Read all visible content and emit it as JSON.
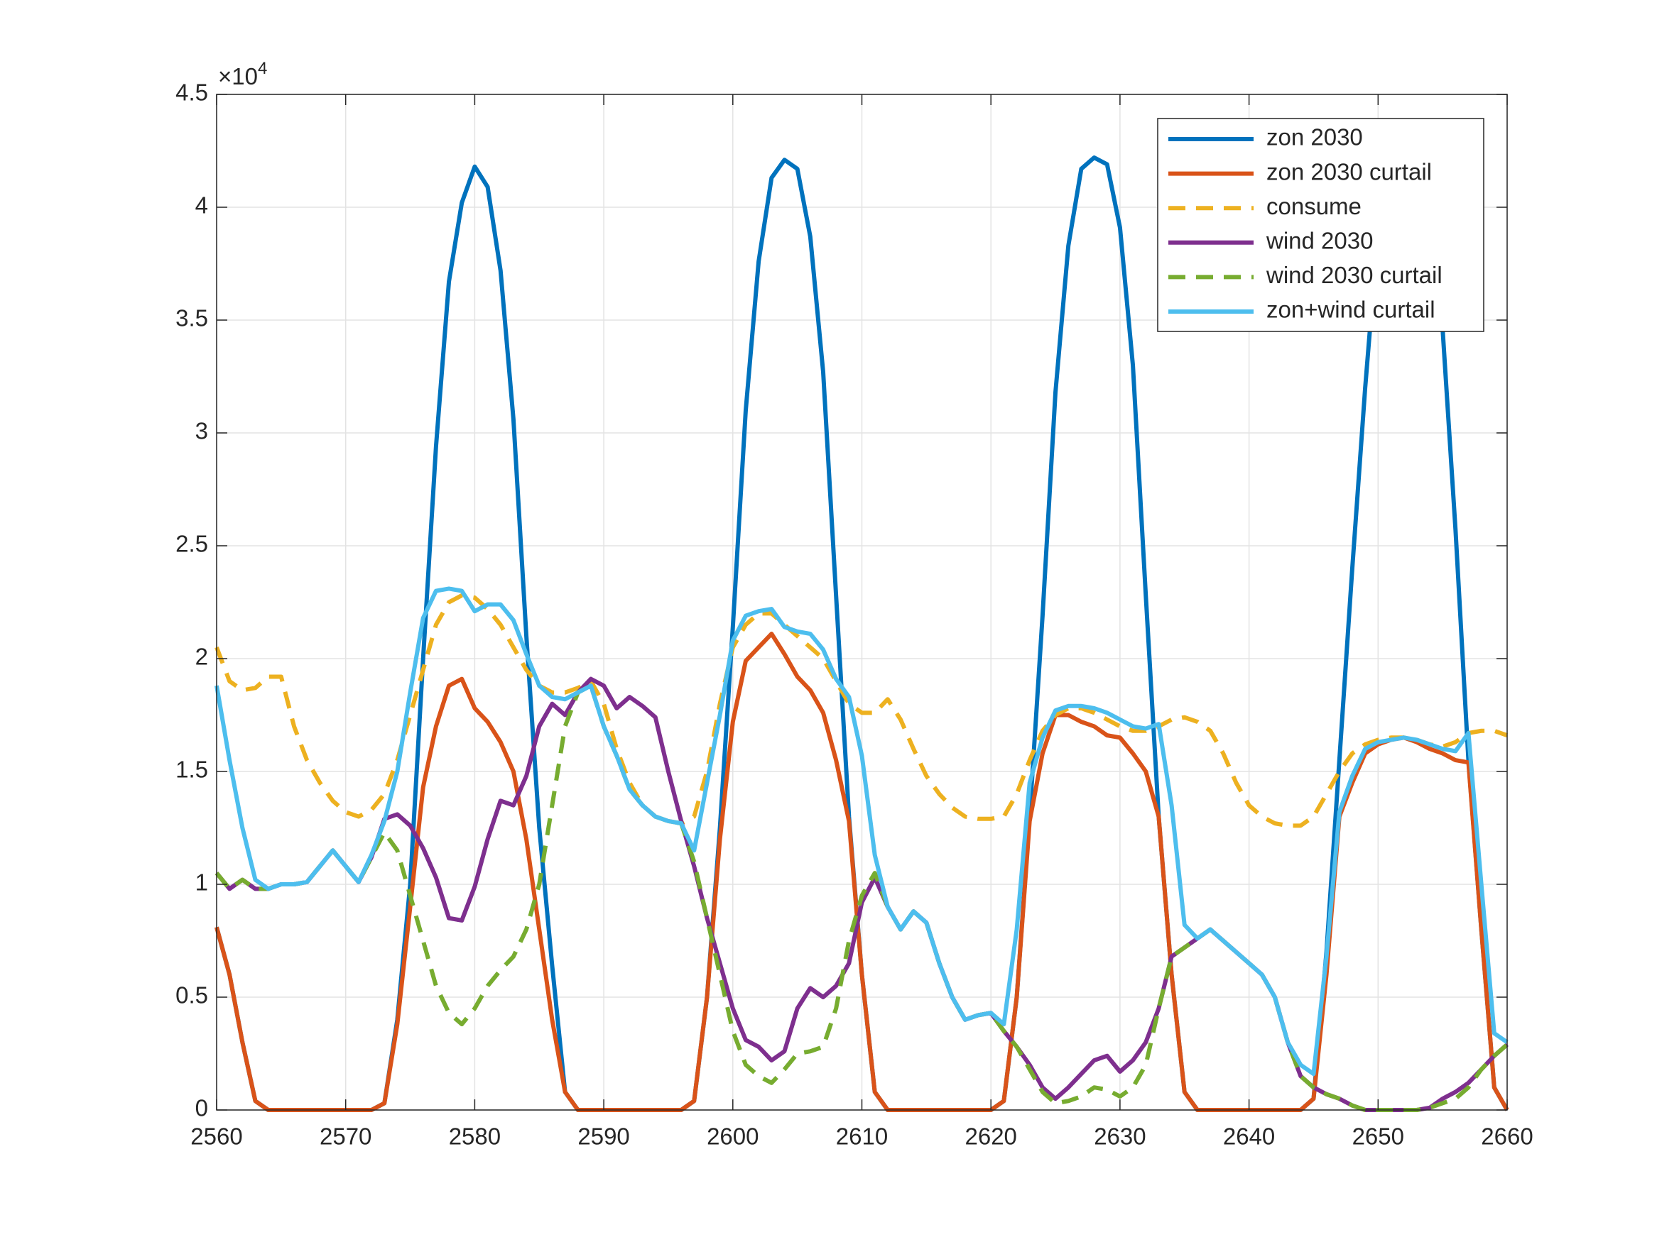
{
  "chart_data": {
    "type": "line",
    "y_exponent_base": "×10",
    "y_exponent": "4",
    "x": [
      2560,
      2561,
      2562,
      2563,
      2564,
      2565,
      2566,
      2567,
      2568,
      2569,
      2570,
      2571,
      2572,
      2573,
      2574,
      2575,
      2576,
      2577,
      2578,
      2579,
      2580,
      2581,
      2582,
      2583,
      2584,
      2585,
      2586,
      2587,
      2588,
      2589,
      2590,
      2591,
      2592,
      2593,
      2594,
      2595,
      2596,
      2597,
      2598,
      2599,
      2600,
      2601,
      2602,
      2603,
      2604,
      2605,
      2606,
      2607,
      2608,
      2609,
      2610,
      2611,
      2612,
      2613,
      2614,
      2615,
      2616,
      2617,
      2618,
      2619,
      2620,
      2621,
      2622,
      2623,
      2624,
      2625,
      2626,
      2627,
      2628,
      2629,
      2630,
      2631,
      2632,
      2633,
      2634,
      2635,
      2636,
      2637,
      2638,
      2639,
      2640,
      2641,
      2642,
      2643,
      2644,
      2645,
      2646,
      2647,
      2648,
      2649,
      2650,
      2651,
      2652,
      2653,
      2654,
      2655,
      2656,
      2657,
      2658,
      2659,
      2660
    ],
    "xlim": [
      2560,
      2660
    ],
    "xticks": [
      2560,
      2570,
      2580,
      2590,
      2600,
      2610,
      2620,
      2630,
      2640,
      2650,
      2660
    ],
    "ylim": [
      0,
      45000
    ],
    "yticks": [
      0,
      {
        "value": 5000,
        "label": "0.5"
      },
      {
        "value": 10000,
        "label": "1"
      },
      {
        "value": 15000,
        "label": "1.5"
      },
      {
        "value": 20000,
        "label": "2"
      },
      {
        "value": 25000,
        "label": "2.5"
      },
      {
        "value": 30000,
        "label": "3"
      },
      {
        "value": 35000,
        "label": "3.5"
      },
      {
        "value": 40000,
        "label": "4"
      },
      {
        "value": 45000,
        "label": "4.5"
      }
    ],
    "grid": true,
    "legend_position": "northeast",
    "series": [
      {
        "name": "zon 2030",
        "color": "#0072BD",
        "linestyle": "solid",
        "values": [
          8100,
          6000,
          3000,
          400,
          0,
          0,
          0,
          0,
          0,
          0,
          0,
          0,
          0,
          300,
          4000,
          10000,
          20000,
          29400,
          36700,
          40200,
          41800,
          40900,
          37200,
          30600,
          21000,
          12500,
          6400,
          800,
          0,
          0,
          0,
          0,
          0,
          0,
          0,
          0,
          0,
          400,
          5000,
          12500,
          21400,
          31000,
          37600,
          41300,
          42100,
          41700,
          38700,
          32700,
          22800,
          13000,
          6000,
          800,
          0,
          0,
          0,
          0,
          0,
          0,
          0,
          0,
          0,
          400,
          5000,
          13000,
          21900,
          31800,
          38300,
          41700,
          42200,
          41900,
          39100,
          33000,
          22800,
          13000,
          6000,
          800,
          0,
          0,
          0,
          0,
          0,
          0,
          0,
          0,
          0,
          500,
          7000,
          15500,
          24000,
          32000,
          39000,
          42000,
          42300,
          42000,
          40000,
          34600,
          25700,
          15500,
          8000,
          1000,
          0
        ]
      },
      {
        "name": "zon 2030 curtail",
        "color": "#D95319",
        "linestyle": "solid",
        "values": [
          8100,
          6000,
          3000,
          400,
          0,
          0,
          0,
          0,
          0,
          0,
          0,
          0,
          0,
          300,
          3800,
          9000,
          14300,
          17000,
          18800,
          19100,
          17800,
          17200,
          16300,
          15000,
          12000,
          8000,
          4000,
          800,
          0,
          0,
          0,
          0,
          0,
          0,
          0,
          0,
          0,
          400,
          5000,
          12000,
          17200,
          19900,
          20500,
          21100,
          20200,
          19200,
          18600,
          17600,
          15500,
          12800,
          6000,
          800,
          0,
          0,
          0,
          0,
          0,
          0,
          0,
          0,
          0,
          400,
          5000,
          12800,
          15800,
          17500,
          17500,
          17200,
          17000,
          16600,
          16500,
          15800,
          15000,
          13000,
          6000,
          800,
          0,
          0,
          0,
          0,
          0,
          0,
          0,
          0,
          0,
          500,
          6000,
          13000,
          14500,
          15800,
          16200,
          16400,
          16500,
          16300,
          16000,
          15800,
          15500,
          15400,
          8000,
          1000,
          0
        ]
      },
      {
        "name": "consume",
        "color": "#EDB120",
        "linestyle": "dashed",
        "values": [
          20500,
          19000,
          18600,
          18700,
          19200,
          19200,
          17000,
          15500,
          14500,
          13700,
          13200,
          13000,
          13300,
          14000,
          15500,
          17500,
          19500,
          21500,
          22500,
          22800,
          22700,
          22200,
          21500,
          20500,
          19500,
          18800,
          18500,
          18500,
          18700,
          19000,
          18000,
          16000,
          14500,
          13500,
          13000,
          12800,
          12700,
          13000,
          15000,
          18000,
          20500,
          21500,
          22000,
          22000,
          21500,
          21000,
          20500,
          20000,
          19000,
          18000,
          17600,
          17600,
          18200,
          17300,
          16000,
          14800,
          14000,
          13400,
          13000,
          12900,
          12900,
          13000,
          14000,
          15500,
          16800,
          17500,
          17800,
          17800,
          17600,
          17300,
          17000,
          16800,
          16800,
          17000,
          17300,
          17400,
          17200,
          16800,
          15800,
          14500,
          13500,
          13000,
          12700,
          12600,
          12600,
          13000,
          14000,
          15000,
          15800,
          16200,
          16400,
          16500,
          16500,
          16400,
          16200,
          16100,
          16300,
          16700,
          16800,
          16800,
          16600
        ]
      },
      {
        "name": "wind 2030",
        "color": "#7E2F8E",
        "linestyle": "solid",
        "values": [
          10500,
          9800,
          10200,
          9800,
          9800,
          10000,
          10000,
          10100,
          10800,
          11500,
          10800,
          10100,
          11200,
          12900,
          13100,
          12600,
          11600,
          10300,
          8500,
          8400,
          9900,
          12000,
          13700,
          13500,
          14800,
          17000,
          18000,
          17500,
          18500,
          19100,
          18800,
          17800,
          18300,
          17900,
          17400,
          15000,
          12800,
          10800,
          8500,
          6500,
          4500,
          3100,
          2800,
          2200,
          2600,
          4500,
          5400,
          5000,
          5500,
          6500,
          9200,
          10300,
          9000,
          8000,
          8800,
          8300,
          6500,
          5000,
          4000,
          4200,
          4300,
          3500,
          2800,
          2000,
          1000,
          500,
          1000,
          1600,
          2200,
          2400,
          1700,
          2200,
          3000,
          4500,
          6800,
          7200,
          7600,
          8000,
          7500,
          7000,
          6500,
          6000,
          5000,
          3000,
          1500,
          1000,
          700,
          500,
          200,
          0,
          0,
          0,
          0,
          0,
          100,
          500,
          800,
          1200,
          1800,
          2400,
          2900
        ]
      },
      {
        "name": "wind 2030 curtail",
        "color": "#77AC30",
        "linestyle": "dashed",
        "values": [
          10500,
          9800,
          10200,
          9800,
          9800,
          10000,
          10000,
          10100,
          10800,
          11500,
          10800,
          10100,
          11200,
          12300,
          11500,
          9500,
          7500,
          5500,
          4300,
          3800,
          4500,
          5500,
          6200,
          6800,
          8000,
          10000,
          13500,
          17000,
          18500,
          18800,
          17000,
          15700,
          14200,
          13500,
          13000,
          12800,
          12700,
          11000,
          8500,
          6000,
          3500,
          2000,
          1500,
          1200,
          1800,
          2500,
          2600,
          2800,
          4500,
          7500,
          9500,
          10500,
          9000,
          8000,
          8800,
          8300,
          6500,
          5000,
          4000,
          4200,
          4300,
          3500,
          2800,
          1800,
          800,
          300,
          400,
          600,
          1000,
          900,
          600,
          1000,
          2000,
          4500,
          6800,
          7200,
          7600,
          8000,
          7500,
          7000,
          6500,
          6000,
          5000,
          3000,
          1500,
          1000,
          700,
          500,
          200,
          0,
          0,
          0,
          0,
          0,
          100,
          300,
          500,
          1000,
          1800,
          2400,
          2900
        ]
      },
      {
        "name": "zon+wind curtail",
        "color": "#4DBEEE",
        "linestyle": "solid",
        "values": [
          18800,
          15500,
          12500,
          10200,
          9800,
          10000,
          10000,
          10100,
          10800,
          11500,
          10800,
          10100,
          11300,
          12800,
          15000,
          18500,
          21800,
          23000,
          23100,
          23000,
          22100,
          22400,
          22400,
          21700,
          20200,
          18800,
          18300,
          18200,
          18500,
          18800,
          17000,
          15700,
          14200,
          13500,
          13000,
          12800,
          12700,
          11500,
          14500,
          17500,
          20800,
          21900,
          22100,
          22200,
          21400,
          21200,
          21100,
          20400,
          19100,
          18300,
          15700,
          11300,
          9000,
          8000,
          8800,
          8300,
          6500,
          5000,
          4000,
          4200,
          4300,
          3800,
          8000,
          14500,
          16500,
          17700,
          17900,
          17900,
          17800,
          17600,
          17300,
          17000,
          16900,
          17100,
          13500,
          8200,
          7600,
          8000,
          7500,
          7000,
          6500,
          6000,
          5000,
          3000,
          2000,
          1600,
          6800,
          13200,
          14800,
          16000,
          16300,
          16400,
          16500,
          16400,
          16200,
          16000,
          15900,
          16700,
          10000,
          3400,
          3000
        ]
      }
    ]
  }
}
